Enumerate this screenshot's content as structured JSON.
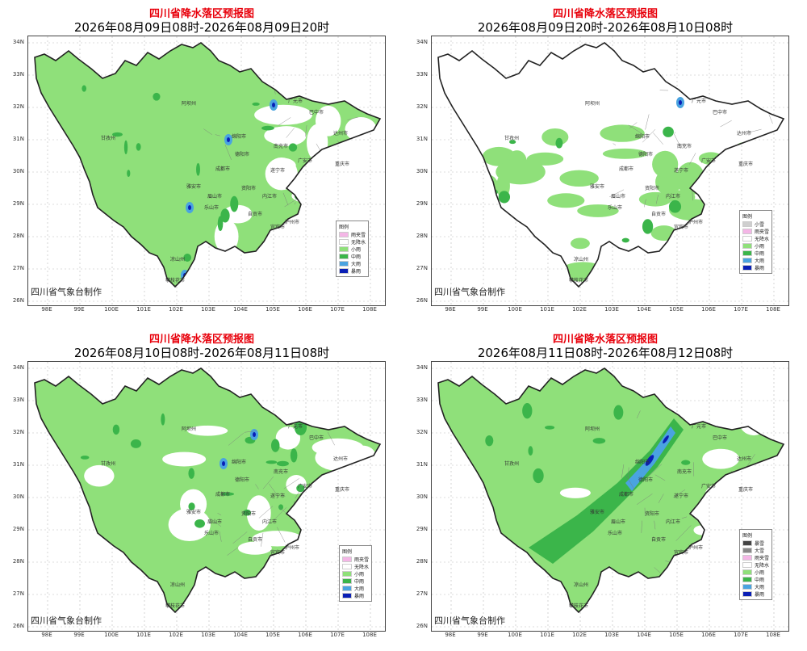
{
  "colors": {
    "title_red": "#e8000b",
    "light_rain": "#8fe07a",
    "moderate_rain": "#3bb54a",
    "heavy_rain": "#4aa3e0",
    "rainstorm": "#0a1fb5",
    "heavy_snow": "#444444",
    "snow": "#888888",
    "light_snow": "#cfcfcf",
    "rain_snow": "#f4b6e6",
    "no_rain": "#ffffff"
  },
  "panels": [
    {
      "title": "四川省降水落区预报图",
      "subtitle": "2026年08月09日08时-2026年08月09日20时",
      "credit": "四川省气象台制作",
      "legend_title": "图例",
      "legend": [
        {
          "label": "雨夹雪",
          "color": "#f4b6e6"
        },
        {
          "label": "无降水",
          "color": "#ffffff"
        },
        {
          "label": "小雨",
          "color": "#8fe07a"
        },
        {
          "label": "中雨",
          "color": "#3bb54a"
        },
        {
          "label": "大雨",
          "color": "#4aa3e0"
        },
        {
          "label": "暴雨",
          "color": "#0a1fb5"
        }
      ]
    },
    {
      "title": "四川省降水落区预报图",
      "subtitle": "2026年08月09日20时-2026年08月10日08时",
      "credit": "四川省气象台制作",
      "legend_title": "图例",
      "legend": [
        {
          "label": "小雪",
          "color": "#cfcfcf"
        },
        {
          "label": "雨夹雪",
          "color": "#f4b6e6"
        },
        {
          "label": "无降水",
          "color": "#ffffff"
        },
        {
          "label": "小雨",
          "color": "#8fe07a"
        },
        {
          "label": "中雨",
          "color": "#3bb54a"
        },
        {
          "label": "大雨",
          "color": "#4aa3e0"
        },
        {
          "label": "暴雨",
          "color": "#0a1fb5"
        }
      ]
    },
    {
      "title": "四川省降水落区预报图",
      "subtitle": "2026年08月10日08时-2026年08月11日08时",
      "credit": "四川省气象台制作",
      "legend_title": "图例",
      "legend": [
        {
          "label": "雨夹雪",
          "color": "#f4b6e6"
        },
        {
          "label": "无降水",
          "color": "#ffffff"
        },
        {
          "label": "小雨",
          "color": "#8fe07a"
        },
        {
          "label": "中雨",
          "color": "#3bb54a"
        },
        {
          "label": "大雨",
          "color": "#4aa3e0"
        },
        {
          "label": "暴雨",
          "color": "#0a1fb5"
        }
      ]
    },
    {
      "title": "四川省降水落区预报图",
      "subtitle": "2026年08月11日08时-2026年08月12日08时",
      "credit": "四川省气象台制作",
      "legend_title": "图例",
      "legend": [
        {
          "label": "暴雪",
          "color": "#444444"
        },
        {
          "label": "大雪",
          "color": "#888888"
        },
        {
          "label": "雨夹雪",
          "color": "#f4b6e6"
        },
        {
          "label": "无降水",
          "color": "#ffffff"
        },
        {
          "label": "小雨",
          "color": "#8fe07a"
        },
        {
          "label": "中雨",
          "color": "#3bb54a"
        },
        {
          "label": "大雨",
          "color": "#4aa3e0"
        },
        {
          "label": "暴雨",
          "color": "#0a1fb5"
        }
      ]
    }
  ],
  "lat_labels": [
    "34N",
    "33N",
    "32N",
    "31N",
    "30N",
    "29N",
    "28N",
    "27N",
    "26N"
  ],
  "lon_labels": [
    "98E",
    "99E",
    "100E",
    "101E",
    "102E",
    "103E",
    "104E",
    "105E",
    "106E",
    "107E",
    "108E"
  ],
  "cities": [
    "阿坝州",
    "巴中市",
    "甘孜州",
    "德阳市",
    "成都市",
    "眉山市",
    "雅安市",
    "乐山市",
    "内江市",
    "宜宾市",
    "凉山州",
    "攀枝花市",
    "达州市",
    "南充市",
    "广安市",
    "遂宁市",
    "泸州市",
    "自贡市",
    "绵阳市",
    "广元市",
    "资阳市",
    "重庆市"
  ]
}
